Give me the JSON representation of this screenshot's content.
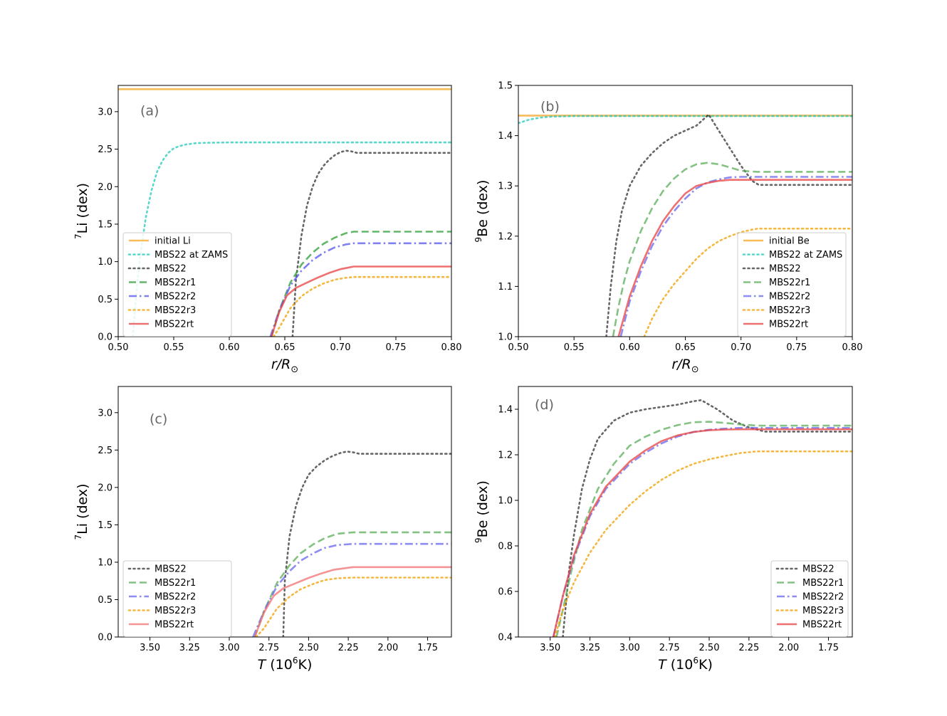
{
  "chart_data": [
    {
      "type": "line",
      "panel_label": "(a)",
      "xlabel": "r/R",
      "xlabel_sub": "⊙",
      "ylabel_sup": "7",
      "ylabel": "Li (dex)",
      "xlim": [
        0.5,
        0.8
      ],
      "ylim": [
        0,
        3.35
      ],
      "xticks": [
        0.5,
        0.55,
        0.6,
        0.65,
        0.7,
        0.75,
        0.8
      ],
      "xtick_labels": [
        "0.50",
        "0.55",
        "0.60",
        "0.65",
        "0.70",
        "0.75",
        "0.80"
      ],
      "yticks": [
        0,
        0.5,
        1,
        1.5,
        2,
        2.5,
        3
      ],
      "ytick_labels": [
        "0.0",
        "0.5",
        "1.0",
        "1.5",
        "2.0",
        "2.5",
        "3.0"
      ],
      "legend": "lower-left",
      "series": [
        {
          "name": "initial Li",
          "color": "#f5a623",
          "style": "solid",
          "x": [
            0.5,
            0.8
          ],
          "y": [
            3.3,
            3.3
          ]
        },
        {
          "name": "MBS22 at ZAMS",
          "color": "#20c9b8",
          "style": "dotted",
          "x": [
            0.513,
            0.517,
            0.52,
            0.525,
            0.53,
            0.535,
            0.54,
            0.545,
            0.55,
            0.555,
            0.56,
            0.57,
            0.58,
            0.6,
            0.65,
            0.7,
            0.75,
            0.8
          ],
          "y": [
            0,
            0.7,
            1.1,
            1.6,
            1.95,
            2.2,
            2.35,
            2.45,
            2.51,
            2.54,
            2.56,
            2.58,
            2.585,
            2.59,
            2.59,
            2.59,
            2.59,
            2.59
          ]
        },
        {
          "name": "MBS22",
          "color": "#333333",
          "style": "dotted",
          "x": [
            0.657,
            0.66,
            0.665,
            0.67,
            0.675,
            0.68,
            0.685,
            0.69,
            0.695,
            0.7,
            0.705,
            0.71,
            0.715,
            0.72,
            0.75,
            0.8
          ],
          "y": [
            0,
            0.75,
            1.35,
            1.75,
            2.0,
            2.17,
            2.28,
            2.36,
            2.42,
            2.46,
            2.48,
            2.47,
            2.45,
            2.45,
            2.45,
            2.45
          ]
        },
        {
          "name": "MBS22r1",
          "color": "#2e9e37",
          "style": "dashed",
          "x": [
            0.638,
            0.645,
            0.655,
            0.665,
            0.675,
            0.685,
            0.695,
            0.705,
            0.712,
            0.75,
            0.8
          ],
          "y": [
            0,
            0.35,
            0.72,
            0.96,
            1.12,
            1.24,
            1.32,
            1.38,
            1.4,
            1.4,
            1.4
          ]
        },
        {
          "name": "MBS22r2",
          "color": "#5555ee",
          "style": "dashdot",
          "x": [
            0.637,
            0.645,
            0.655,
            0.665,
            0.675,
            0.685,
            0.695,
            0.705,
            0.712,
            0.75,
            0.8
          ],
          "y": [
            0,
            0.35,
            0.68,
            0.88,
            1.02,
            1.12,
            1.19,
            1.23,
            1.245,
            1.245,
            1.245
          ]
        },
        {
          "name": "MBS22r3",
          "color": "#f0a000",
          "style": "dotted",
          "x": [
            0.64,
            0.645,
            0.655,
            0.665,
            0.675,
            0.685,
            0.695,
            0.705,
            0.712,
            0.75,
            0.8
          ],
          "y": [
            0,
            0.12,
            0.38,
            0.54,
            0.64,
            0.71,
            0.76,
            0.785,
            0.795,
            0.795,
            0.795
          ]
        },
        {
          "name": "MBS22rt",
          "color": "#e84040",
          "style": "solid",
          "x": [
            0.638,
            0.645,
            0.652,
            0.66,
            0.67,
            0.68,
            0.69,
            0.7,
            0.712,
            0.75,
            0.8
          ],
          "y": [
            0,
            0.33,
            0.55,
            0.65,
            0.72,
            0.79,
            0.85,
            0.9,
            0.935,
            0.935,
            0.935
          ]
        }
      ]
    },
    {
      "type": "line",
      "panel_label": "(b)",
      "xlabel": "r/R",
      "xlabel_sub": "⊙",
      "ylabel_sup": "9",
      "ylabel": "Be (dex)",
      "xlim": [
        0.5,
        0.8
      ],
      "ylim": [
        1.0,
        1.5
      ],
      "xticks": [
        0.5,
        0.55,
        0.6,
        0.65,
        0.7,
        0.75,
        0.8
      ],
      "xtick_labels": [
        "0.50",
        "0.55",
        "0.60",
        "0.65",
        "0.70",
        "0.75",
        "0.80"
      ],
      "yticks": [
        1.0,
        1.1,
        1.2,
        1.3,
        1.4,
        1.5
      ],
      "ytick_labels": [
        "1.0",
        "1.1",
        "1.2",
        "1.3",
        "1.4",
        "1.5"
      ],
      "legend": "lower-right",
      "series": [
        {
          "name": "initial Be",
          "color": "#f5a623",
          "style": "solid",
          "x": [
            0.5,
            0.8
          ],
          "y": [
            1.44,
            1.44
          ]
        },
        {
          "name": "MBS22 at ZAMS",
          "color": "#20c9b8",
          "style": "dotted",
          "x": [
            0.5,
            0.51,
            0.52,
            0.53,
            0.55,
            0.6,
            0.7,
            0.8
          ],
          "y": [
            1.425,
            1.432,
            1.436,
            1.438,
            1.439,
            1.439,
            1.439,
            1.439
          ]
        },
        {
          "name": "MBS22",
          "color": "#333333",
          "style": "dotted",
          "x": [
            0.579,
            0.583,
            0.588,
            0.593,
            0.6,
            0.61,
            0.62,
            0.63,
            0.64,
            0.65,
            0.66,
            0.665,
            0.671,
            0.68,
            0.69,
            0.7,
            0.71,
            0.716,
            0.75,
            0.8
          ],
          "y": [
            1.0,
            1.1,
            1.19,
            1.25,
            1.3,
            1.34,
            1.365,
            1.385,
            1.4,
            1.41,
            1.42,
            1.43,
            1.442,
            1.41,
            1.375,
            1.34,
            1.31,
            1.302,
            1.302,
            1.302
          ]
        },
        {
          "name": "MBS22r1",
          "color": "#5aad5a",
          "style": "dashed",
          "x": [
            0.585,
            0.59,
            0.595,
            0.6,
            0.61,
            0.62,
            0.63,
            0.64,
            0.65,
            0.66,
            0.67,
            0.68,
            0.69,
            0.7,
            0.715,
            0.75,
            0.8
          ],
          "y": [
            1.0,
            1.06,
            1.11,
            1.15,
            1.21,
            1.255,
            1.29,
            1.315,
            1.333,
            1.343,
            1.346,
            1.343,
            1.337,
            1.33,
            1.328,
            1.328,
            1.328
          ]
        },
        {
          "name": "MBS22r2",
          "color": "#6666ee",
          "style": "dashdot",
          "x": [
            0.592,
            0.6,
            0.61,
            0.62,
            0.63,
            0.64,
            0.65,
            0.66,
            0.67,
            0.68,
            0.69,
            0.7,
            0.715,
            0.75,
            0.8
          ],
          "y": [
            1.0,
            1.07,
            1.13,
            1.18,
            1.22,
            1.25,
            1.275,
            1.295,
            1.307,
            1.313,
            1.317,
            1.318,
            1.318,
            1.318,
            1.318
          ]
        },
        {
          "name": "MBS22r3",
          "color": "#f0a000",
          "style": "dotted",
          "x": [
            0.613,
            0.62,
            0.63,
            0.64,
            0.65,
            0.66,
            0.67,
            0.68,
            0.69,
            0.7,
            0.71,
            0.715,
            0.75,
            0.8
          ],
          "y": [
            1.0,
            1.035,
            1.075,
            1.105,
            1.13,
            1.155,
            1.175,
            1.19,
            1.2,
            1.208,
            1.213,
            1.215,
            1.215,
            1.215
          ]
        },
        {
          "name": "MBS22rt",
          "color": "#e84040",
          "style": "solid",
          "x": [
            0.59,
            0.6,
            0.61,
            0.62,
            0.63,
            0.64,
            0.65,
            0.66,
            0.67,
            0.68,
            0.69,
            0.7,
            0.715,
            0.75,
            0.8
          ],
          "y": [
            1.0,
            1.08,
            1.14,
            1.19,
            1.23,
            1.26,
            1.285,
            1.3,
            1.306,
            1.31,
            1.312,
            1.312,
            1.312,
            1.312,
            1.312
          ]
        }
      ]
    },
    {
      "type": "line",
      "panel_label": "(c)",
      "xlabel": "T (10",
      "xlabel_sup": "6",
      "xlabel_tail": "K)",
      "ylabel_sup": "7",
      "ylabel": "Li (dex)",
      "xlim": [
        3.7,
        1.6
      ],
      "ylim": [
        0,
        3.35
      ],
      "xticks": [
        3.5,
        3.25,
        3.0,
        2.75,
        2.5,
        2.25,
        2.0,
        1.75
      ],
      "xtick_labels": [
        "3.50",
        "3.25",
        "3.00",
        "2.75",
        "2.50",
        "2.25",
        "2.00",
        "1.75"
      ],
      "yticks": [
        0,
        0.5,
        1,
        1.5,
        2,
        2.5,
        3
      ],
      "ytick_labels": [
        "0.0",
        "0.5",
        "1.0",
        "1.5",
        "2.0",
        "2.5",
        "3.0"
      ],
      "legend": "lower-left",
      "series": [
        {
          "name": "MBS22",
          "color": "#333333",
          "style": "dotted",
          "x": [
            2.66,
            2.65,
            2.62,
            2.58,
            2.54,
            2.5,
            2.45,
            2.4,
            2.35,
            2.3,
            2.26,
            2.22,
            2.18,
            2.1,
            1.9,
            1.6
          ],
          "y": [
            0,
            0.75,
            1.35,
            1.75,
            2.0,
            2.17,
            2.28,
            2.36,
            2.42,
            2.46,
            2.48,
            2.47,
            2.45,
            2.45,
            2.45,
            2.45
          ]
        },
        {
          "name": "MBS22r1",
          "color": "#5aad5a",
          "style": "dashed",
          "x": [
            2.84,
            2.78,
            2.7,
            2.62,
            2.55,
            2.47,
            2.4,
            2.32,
            2.22,
            2.0,
            1.6
          ],
          "y": [
            0,
            0.35,
            0.72,
            0.96,
            1.12,
            1.24,
            1.32,
            1.38,
            1.4,
            1.4,
            1.4
          ]
        },
        {
          "name": "MBS22r2",
          "color": "#6666ee",
          "style": "dashdot",
          "x": [
            2.85,
            2.78,
            2.7,
            2.62,
            2.55,
            2.47,
            2.4,
            2.32,
            2.22,
            2.0,
            1.6
          ],
          "y": [
            0,
            0.35,
            0.68,
            0.88,
            1.02,
            1.12,
            1.19,
            1.23,
            1.245,
            1.245,
            1.245
          ]
        },
        {
          "name": "MBS22r3",
          "color": "#f0a000",
          "style": "dotted",
          "x": [
            2.83,
            2.78,
            2.7,
            2.62,
            2.55,
            2.47,
            2.4,
            2.32,
            2.22,
            2.0,
            1.6
          ],
          "y": [
            0,
            0.12,
            0.38,
            0.54,
            0.64,
            0.71,
            0.76,
            0.785,
            0.795,
            0.795,
            0.795
          ]
        },
        {
          "name": "MBS22rt",
          "color": "#f07070",
          "style": "solid",
          "x": [
            2.84,
            2.78,
            2.72,
            2.66,
            2.58,
            2.5,
            2.42,
            2.34,
            2.22,
            2.0,
            1.6
          ],
          "y": [
            0,
            0.33,
            0.55,
            0.65,
            0.72,
            0.79,
            0.85,
            0.9,
            0.935,
            0.935,
            0.935
          ]
        }
      ]
    },
    {
      "type": "line",
      "panel_label": "(d)",
      "xlabel": "T (10",
      "xlabel_sup": "6",
      "xlabel_tail": "K)",
      "ylabel_sup": "9",
      "ylabel": "Be (dex)",
      "xlim": [
        3.7,
        1.6
      ],
      "ylim": [
        0.4,
        1.5
      ],
      "xticks": [
        3.5,
        3.25,
        3.0,
        2.75,
        2.5,
        2.25,
        2.0,
        1.75
      ],
      "xtick_labels": [
        "3.50",
        "3.25",
        "3.00",
        "2.75",
        "2.50",
        "2.25",
        "2.00",
        "1.75"
      ],
      "yticks": [
        0.4,
        0.6,
        0.8,
        1.0,
        1.2,
        1.4
      ],
      "ytick_labels": [
        "0.4",
        "0.6",
        "0.8",
        "1.0",
        "1.2",
        "1.4"
      ],
      "legend": "lower-right",
      "series": [
        {
          "name": "MBS22",
          "color": "#333333",
          "style": "dotted",
          "x": [
            3.42,
            3.4,
            3.38,
            3.35,
            3.3,
            3.25,
            3.2,
            3.1,
            3.0,
            2.9,
            2.8,
            2.7,
            2.6,
            2.55,
            2.45,
            2.35,
            2.25,
            2.15,
            2.0,
            1.6
          ],
          "y": [
            0.4,
            0.55,
            0.7,
            0.85,
            1.05,
            1.18,
            1.27,
            1.35,
            1.385,
            1.4,
            1.41,
            1.42,
            1.435,
            1.44,
            1.4,
            1.35,
            1.32,
            1.302,
            1.302,
            1.302
          ]
        },
        {
          "name": "MBS22r1",
          "color": "#5aad5a",
          "style": "dashed",
          "x": [
            3.46,
            3.42,
            3.37,
            3.3,
            3.2,
            3.1,
            3.0,
            2.9,
            2.8,
            2.7,
            2.6,
            2.5,
            2.4,
            2.3,
            2.2,
            2.15,
            2.0,
            1.6
          ],
          "y": [
            0.4,
            0.52,
            0.68,
            0.87,
            1.05,
            1.16,
            1.24,
            1.28,
            1.31,
            1.33,
            1.343,
            1.345,
            1.34,
            1.333,
            1.328,
            1.328,
            1.328,
            1.328
          ]
        },
        {
          "name": "MBS22r2",
          "color": "#6666ee",
          "style": "dashdot",
          "x": [
            3.48,
            3.42,
            3.35,
            3.25,
            3.15,
            3.0,
            2.9,
            2.8,
            2.7,
            2.6,
            2.5,
            2.4,
            2.3,
            2.2,
            2.0,
            1.6
          ],
          "y": [
            0.4,
            0.58,
            0.75,
            0.93,
            1.05,
            1.16,
            1.21,
            1.25,
            1.28,
            1.3,
            1.31,
            1.315,
            1.318,
            1.318,
            1.318,
            1.318
          ]
        },
        {
          "name": "MBS22r3",
          "color": "#f0a000",
          "style": "dotted",
          "x": [
            3.47,
            3.42,
            3.35,
            3.25,
            3.15,
            3.0,
            2.9,
            2.8,
            2.7,
            2.6,
            2.5,
            2.4,
            2.3,
            2.2,
            2.0,
            1.6
          ],
          "y": [
            0.4,
            0.52,
            0.64,
            0.77,
            0.87,
            0.98,
            1.04,
            1.09,
            1.13,
            1.16,
            1.18,
            1.195,
            1.208,
            1.215,
            1.215,
            1.215
          ]
        },
        {
          "name": "MBS22rt",
          "color": "#e84040",
          "style": "solid",
          "x": [
            3.48,
            3.42,
            3.35,
            3.25,
            3.15,
            3.0,
            2.9,
            2.8,
            2.7,
            2.6,
            2.5,
            2.4,
            2.3,
            2.2,
            2.0,
            1.6
          ],
          "y": [
            0.4,
            0.58,
            0.76,
            0.94,
            1.06,
            1.17,
            1.22,
            1.26,
            1.285,
            1.3,
            1.308,
            1.311,
            1.312,
            1.312,
            1.312,
            1.312
          ]
        }
      ]
    }
  ]
}
